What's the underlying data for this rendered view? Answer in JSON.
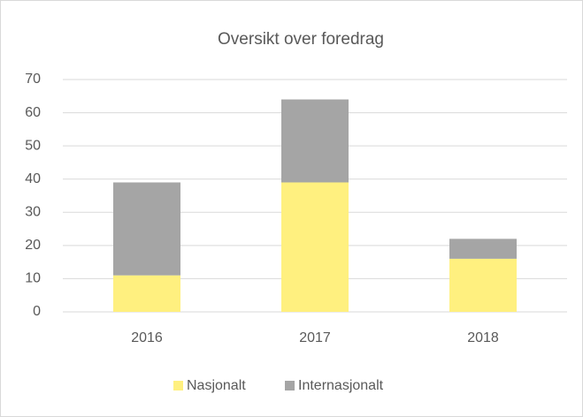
{
  "chart_data": {
    "type": "stacked_bar",
    "title": "Oversikt over foredrag",
    "categories": [
      "2016",
      "2017",
      "2018"
    ],
    "series": [
      {
        "name": "Nasjonalt",
        "color": "#fff07f",
        "values": [
          11,
          39,
          16
        ]
      },
      {
        "name": "Internasjonalt",
        "color": "#a5a5a5",
        "values": [
          28,
          25,
          6
        ]
      }
    ],
    "ylim": [
      0,
      70
    ],
    "yticks": [
      0,
      10,
      20,
      30,
      40,
      50,
      60,
      70
    ],
    "grid": true,
    "legend": "bottom"
  }
}
